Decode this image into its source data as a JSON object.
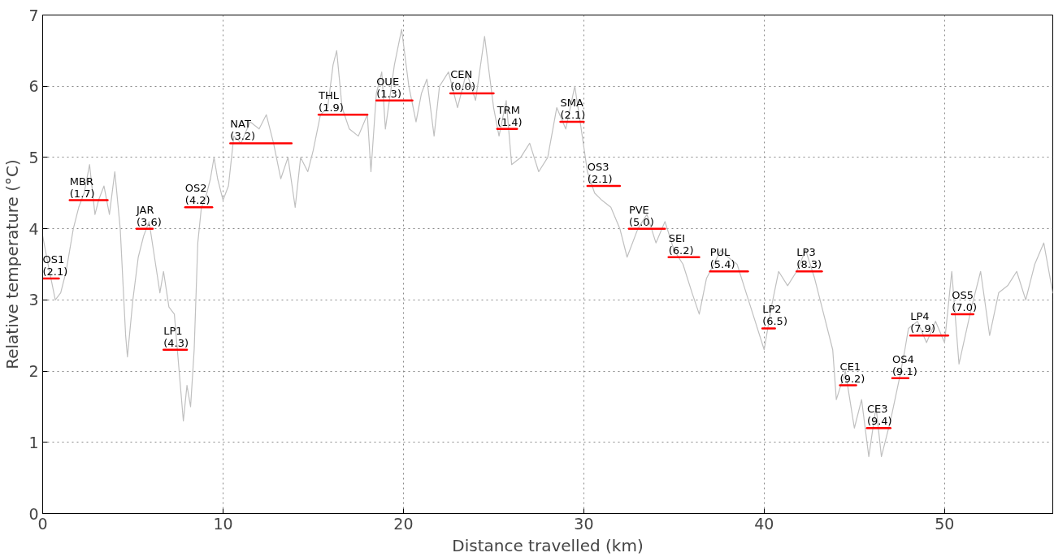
{
  "chart_data": {
    "type": "line",
    "xlabel": "Distance travelled (km)",
    "ylabel": "Relative temperature (°C)",
    "xlim": [
      0,
      56
    ],
    "ylim": [
      0,
      7
    ],
    "xticks": [
      0,
      10,
      20,
      30,
      40,
      50
    ],
    "yticks": [
      0,
      1,
      2,
      3,
      4,
      5,
      6,
      7
    ],
    "grid": true,
    "series": [
      {
        "color": "#c0c0c0",
        "x": [
          0,
          0.3,
          0.7,
          1.0,
          1.3,
          1.7,
          2.0,
          2.3,
          2.6,
          2.9,
          3.1,
          3.4,
          3.7,
          4.0,
          4.3,
          4.6,
          4.7,
          5.0,
          5.3,
          5.6,
          5.9,
          6.2,
          6.5,
          6.7,
          7.0,
          7.3,
          7.5,
          7.8,
          8.0,
          8.2,
          8.4,
          8.6,
          8.8,
          9.0,
          9.3,
          9.5,
          9.7,
          10.0,
          10.3,
          10.6,
          11.0,
          11.5,
          12.0,
          12.4,
          12.8,
          13.2,
          13.6,
          14.0,
          14.3,
          14.7,
          15.0,
          15.4,
          15.8,
          16.1,
          16.3,
          16.6,
          17.0,
          17.5,
          18.0,
          18.2,
          18.5,
          18.8,
          19.0,
          19.5,
          19.9,
          20.3,
          20.7,
          21.0,
          21.3,
          21.7,
          22.0,
          22.5,
          23.0,
          23.5,
          24.0,
          24.5,
          25.0,
          25.3,
          25.7,
          26.0,
          26.5,
          27.0,
          27.5,
          28.0,
          28.5,
          29.0,
          29.5,
          29.8,
          30.2,
          30.6,
          31.0,
          31.5,
          32.0,
          32.4,
          33.0,
          33.5,
          34.0,
          34.5,
          35.0,
          35.5,
          36.0,
          36.4,
          36.8,
          37.2,
          37.6,
          38.0,
          38.5,
          39.0,
          39.5,
          40.0,
          40.4,
          40.8,
          41.3,
          41.8,
          42.3,
          42.8,
          43.4,
          43.8,
          44.0,
          44.5,
          45.0,
          45.4,
          45.8,
          46.2,
          46.5,
          47.0,
          47.5,
          47.8,
          48.0,
          48.5,
          49.0,
          49.5,
          50.0,
          50.4,
          50.8,
          51.5,
          52.0,
          52.5,
          53.0,
          53.5,
          54.0,
          54.5,
          55.0,
          55.5,
          56.0
        ],
        "values": [
          3.9,
          3.5,
          3.0,
          3.1,
          3.4,
          4.0,
          4.3,
          4.5,
          4.9,
          4.2,
          4.4,
          4.6,
          4.2,
          4.8,
          4.0,
          2.5,
          2.2,
          3.0,
          3.6,
          3.9,
          4.1,
          3.6,
          3.1,
          3.4,
          2.9,
          2.8,
          2.2,
          1.3,
          1.8,
          1.5,
          2.3,
          3.8,
          4.3,
          4.4,
          4.7,
          5.0,
          4.7,
          4.4,
          4.6,
          5.3,
          5.2,
          5.5,
          5.4,
          5.6,
          5.2,
          4.7,
          5.0,
          4.3,
          5.0,
          4.8,
          5.1,
          5.6,
          5.7,
          6.3,
          6.5,
          5.7,
          5.4,
          5.3,
          5.6,
          4.8,
          5.9,
          6.2,
          5.4,
          6.3,
          6.8,
          6.0,
          5.5,
          5.9,
          6.1,
          5.3,
          6.0,
          6.2,
          5.7,
          6.2,
          5.8,
          6.7,
          5.7,
          5.3,
          5.8,
          4.9,
          5.0,
          5.2,
          4.8,
          5.0,
          5.7,
          5.4,
          6.0,
          5.5,
          4.8,
          4.5,
          4.4,
          4.3,
          4.0,
          3.6,
          4.0,
          4.2,
          3.8,
          4.1,
          3.7,
          3.5,
          3.1,
          2.8,
          3.3,
          3.5,
          3.7,
          3.6,
          3.5,
          3.1,
          2.7,
          2.3,
          2.9,
          3.4,
          3.2,
          3.4,
          3.7,
          3.3,
          2.7,
          2.3,
          1.6,
          2.0,
          1.2,
          1.6,
          0.8,
          1.5,
          0.8,
          1.3,
          1.9,
          2.3,
          2.6,
          2.7,
          2.4,
          2.7,
          2.4,
          3.4,
          2.1,
          2.9,
          3.4,
          2.5,
          3.1,
          3.2,
          3.4,
          3.0,
          3.5,
          3.8,
          3.1
        ]
      },
      {
        "color": "#ff0000",
        "x": [
          0,
          0.9
        ],
        "values": [
          3.3,
          3.3
        ]
      },
      {
        "color": "#ff0000",
        "x": [
          1.5,
          3.6
        ],
        "values": [
          4.4,
          4.4
        ]
      },
      {
        "color": "#ff0000",
        "x": [
          5.2,
          6.1
        ],
        "values": [
          4.0,
          4.0
        ]
      },
      {
        "color": "#ff0000",
        "x": [
          6.7,
          8.0
        ],
        "values": [
          2.3,
          2.3
        ]
      },
      {
        "color": "#ff0000",
        "x": [
          7.9,
          9.4
        ],
        "values": [
          4.3,
          4.3
        ]
      },
      {
        "color": "#ff0000",
        "x": [
          10.4,
          13.8
        ],
        "values": [
          5.2,
          5.2
        ]
      },
      {
        "color": "#ff0000",
        "x": [
          15.3,
          18.0
        ],
        "values": [
          5.6,
          5.6
        ]
      },
      {
        "color": "#ff0000",
        "x": [
          18.5,
          20.5
        ],
        "values": [
          5.8,
          5.8
        ]
      },
      {
        "color": "#ff0000",
        "x": [
          22.6,
          25.0
        ],
        "values": [
          5.9,
          5.9
        ]
      },
      {
        "color": "#ff0000",
        "x": [
          25.2,
          26.3
        ],
        "values": [
          5.4,
          5.4
        ]
      },
      {
        "color": "#ff0000",
        "x": [
          28.7,
          30.0
        ],
        "values": [
          5.5,
          5.5
        ]
      },
      {
        "color": "#ff0000",
        "x": [
          30.2,
          32.0
        ],
        "values": [
          4.6,
          4.6
        ]
      },
      {
        "color": "#ff0000",
        "x": [
          32.5,
          34.5
        ],
        "values": [
          4.0,
          4.0
        ]
      },
      {
        "color": "#ff0000",
        "x": [
          34.7,
          36.4
        ],
        "values": [
          3.6,
          3.6
        ]
      },
      {
        "color": "#ff0000",
        "x": [
          37.0,
          39.1
        ],
        "values": [
          3.4,
          3.4
        ]
      },
      {
        "color": "#ff0000",
        "x": [
          39.9,
          40.6
        ],
        "values": [
          2.6,
          2.6
        ]
      },
      {
        "color": "#ff0000",
        "x": [
          41.8,
          43.2
        ],
        "values": [
          3.4,
          3.4
        ]
      },
      {
        "color": "#ff0000",
        "x": [
          44.2,
          45.1
        ],
        "values": [
          1.8,
          1.8
        ]
      },
      {
        "color": "#ff0000",
        "x": [
          45.7,
          47.0
        ],
        "values": [
          1.2,
          1.2
        ]
      },
      {
        "color": "#ff0000",
        "x": [
          47.1,
          48.0
        ],
        "values": [
          1.9,
          1.9
        ]
      },
      {
        "color": "#ff0000",
        "x": [
          48.1,
          50.2
        ],
        "values": [
          2.5,
          2.5
        ]
      },
      {
        "color": "#ff0000",
        "x": [
          50.4,
          51.6
        ],
        "values": [
          2.8,
          2.8
        ]
      }
    ],
    "annotations": [
      {
        "text": "OS1\n(2.1)",
        "x": 0,
        "y": 3.3
      },
      {
        "text": "MBR\n(1.7)",
        "x": 1.5,
        "y": 4.4
      },
      {
        "text": "JAR\n(3.6)",
        "x": 5.2,
        "y": 4.0
      },
      {
        "text": "LP1\n(4.3)",
        "x": 6.7,
        "y": 2.3
      },
      {
        "text": "OS2\n(4.2)",
        "x": 7.9,
        "y": 4.3
      },
      {
        "text": "NAT\n(3.2)",
        "x": 10.4,
        "y": 5.2
      },
      {
        "text": "THL\n(1.9)",
        "x": 15.3,
        "y": 5.6
      },
      {
        "text": "OUE\n(1.3)",
        "x": 18.5,
        "y": 5.8
      },
      {
        "text": "CEN\n(0.0)",
        "x": 22.6,
        "y": 5.9
      },
      {
        "text": "TRM\n(1.4)",
        "x": 25.2,
        "y": 5.4
      },
      {
        "text": "SMA\n(2.1)",
        "x": 28.7,
        "y": 5.5
      },
      {
        "text": "OS3\n(2.1)",
        "x": 30.2,
        "y": 4.6
      },
      {
        "text": "PVE\n(5.0)",
        "x": 32.5,
        "y": 4.0
      },
      {
        "text": "SEI\n(6.2)",
        "x": 34.7,
        "y": 3.6
      },
      {
        "text": "PUL\n(5.4)",
        "x": 37.0,
        "y": 3.4
      },
      {
        "text": "LP2\n(6.5)",
        "x": 39.9,
        "y": 2.6
      },
      {
        "text": "LP3\n(8.3)",
        "x": 41.8,
        "y": 3.4
      },
      {
        "text": "CE1\n(9.2)",
        "x": 44.2,
        "y": 1.8
      },
      {
        "text": "CE3\n(9.4)",
        "x": 45.7,
        "y": 1.2
      },
      {
        "text": "OS4\n(9.1)",
        "x": 47.1,
        "y": 1.9
      },
      {
        "text": "LP4\n(7.9)",
        "x": 48.1,
        "y": 2.5
      },
      {
        "text": "OS5\n(7.0)",
        "x": 50.4,
        "y": 2.8
      }
    ]
  }
}
